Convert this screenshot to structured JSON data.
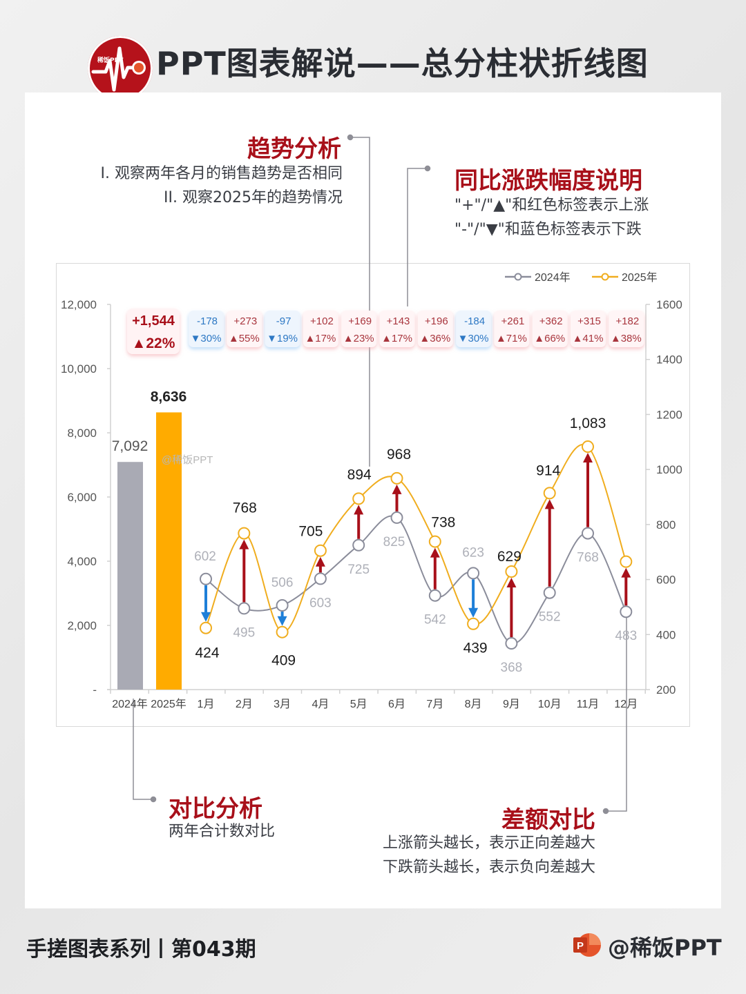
{
  "header": {
    "logo_text": "稀饭PPT",
    "title": "PPT图表解说——总分柱状折线图"
  },
  "annotations": {
    "trend": {
      "title": "趋势分析",
      "lines": [
        "I.  观察两年各月的销售趋势是否相同",
        "II. 观察2025年的趋势情况"
      ]
    },
    "yoy": {
      "title": "同比涨跌幅度说明",
      "lines": [
        "\"+\"/\"▲\"和红色标签表示上涨",
        "\"-\"/\"▼\"和蓝色标签表示下跌"
      ]
    },
    "compare": {
      "title": "对比分析",
      "lines": [
        "两年合计数对比"
      ]
    },
    "diff": {
      "title": "差额对比",
      "lines": [
        "上涨箭头越长，表示正向差越大",
        "下跌箭头越长，表示负向差越大"
      ]
    }
  },
  "footer": {
    "series": "手搓图表系列丨第043期",
    "brand": "@稀饭PPT"
  },
  "colors": {
    "series_2024": "#8a8c9a",
    "bar_2024": "#a9aab4",
    "series_2025": "#f0ad1e",
    "bar_2025": "#ffab00",
    "up_red": "#a8101a",
    "down_blue": "#1e7fd8",
    "title_red": "#a8101a"
  },
  "chart_data": {
    "type": "bar+line",
    "title": "总分柱状折线图",
    "watermark": "@稀饭PPT",
    "legend": [
      "2024年",
      "2025年"
    ],
    "legend_position": "top-right",
    "totals": {
      "categories": [
        "2024年",
        "2025年"
      ],
      "values": [
        7092,
        8636
      ],
      "diff_label": "+1,544",
      "pct_label": "▲22%",
      "axis": "left"
    },
    "categories": [
      "1月",
      "2月",
      "3月",
      "4月",
      "5月",
      "6月",
      "7月",
      "8月",
      "9月",
      "10月",
      "11月",
      "12月"
    ],
    "series": [
      {
        "name": "2024年",
        "values": [
          602,
          495,
          506,
          603,
          725,
          825,
          542,
          623,
          368,
          552,
          768,
          483
        ],
        "axis": "right"
      },
      {
        "name": "2025年",
        "values": [
          424,
          768,
          409,
          705,
          894,
          968,
          738,
          439,
          629,
          914,
          1083,
          665
        ],
        "axis": "right"
      }
    ],
    "value_labels_2025": [
      "424",
      "768",
      "409",
      "705",
      "894",
      "968",
      "738",
      "439",
      "629",
      "914",
      "1,083",
      ""
    ],
    "yoy_diff": [
      "-178",
      "+273",
      "-97",
      "+102",
      "+169",
      "+143",
      "+196",
      "-184",
      "+261",
      "+362",
      "+315",
      "+182"
    ],
    "yoy_pct": [
      "▼30%",
      "▲55%",
      "▼19%",
      "▲17%",
      "▲23%",
      "▲17%",
      "▲36%",
      "▼30%",
      "▲71%",
      "▲66%",
      "▲41%",
      "▲38%"
    ],
    "yoy_direction": [
      "down",
      "up",
      "down",
      "up",
      "up",
      "up",
      "up",
      "down",
      "up",
      "up",
      "up",
      "up"
    ],
    "left_axis": {
      "ticks": [
        "-",
        "2,000",
        "4,000",
        "6,000",
        "8,000",
        "10,000",
        "12,000"
      ],
      "range": [
        0,
        12000
      ]
    },
    "right_axis": {
      "ticks": [
        "200",
        "400",
        "600",
        "800",
        "1000",
        "1200",
        "1400",
        "1600"
      ],
      "range": [
        200,
        1600
      ]
    },
    "grid": false
  }
}
